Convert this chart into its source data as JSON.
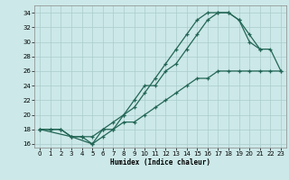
{
  "xlabel": "Humidex (Indice chaleur)",
  "xlim": [
    -0.5,
    23.5
  ],
  "ylim": [
    15.5,
    35
  ],
  "xticks": [
    0,
    1,
    2,
    3,
    4,
    5,
    6,
    7,
    8,
    9,
    10,
    11,
    12,
    13,
    14,
    15,
    16,
    17,
    18,
    19,
    20,
    21,
    22,
    23
  ],
  "yticks": [
    16,
    18,
    20,
    22,
    24,
    26,
    28,
    30,
    32,
    34
  ],
  "bg_color": "#cce8e8",
  "line_color": "#226655",
  "line1_x": [
    0,
    1,
    2,
    3,
    4,
    5,
    6,
    7,
    8,
    9,
    10,
    11,
    12,
    13,
    14,
    15,
    16,
    17,
    18,
    19,
    20,
    21,
    22,
    23
  ],
  "line1_y": [
    18,
    18,
    18,
    17,
    17,
    16,
    17,
    18,
    20,
    21,
    23,
    25,
    27,
    29,
    31,
    33,
    34,
    34,
    34,
    33,
    30,
    29,
    29,
    26
  ],
  "line2_x": [
    0,
    1,
    2,
    3,
    4,
    5,
    6,
    7,
    8,
    9,
    10,
    11,
    12,
    13,
    14,
    15,
    16,
    17,
    18,
    19,
    20,
    21,
    22,
    23
  ],
  "line2_y": [
    18,
    18,
    18,
    17,
    17,
    17,
    18,
    19,
    20,
    22,
    24,
    24,
    26,
    27,
    29,
    31,
    33,
    34,
    34,
    33,
    31,
    29,
    null,
    null
  ],
  "line3_x": [
    0,
    3,
    5,
    6,
    7,
    8,
    9,
    10,
    11,
    12,
    13,
    14,
    15,
    16,
    17,
    18,
    19,
    20,
    21,
    22,
    23
  ],
  "line3_y": [
    18,
    17,
    16,
    18,
    18,
    19,
    19,
    20,
    21,
    22,
    23,
    24,
    25,
    25,
    26,
    26,
    26,
    26,
    26,
    26,
    26
  ]
}
